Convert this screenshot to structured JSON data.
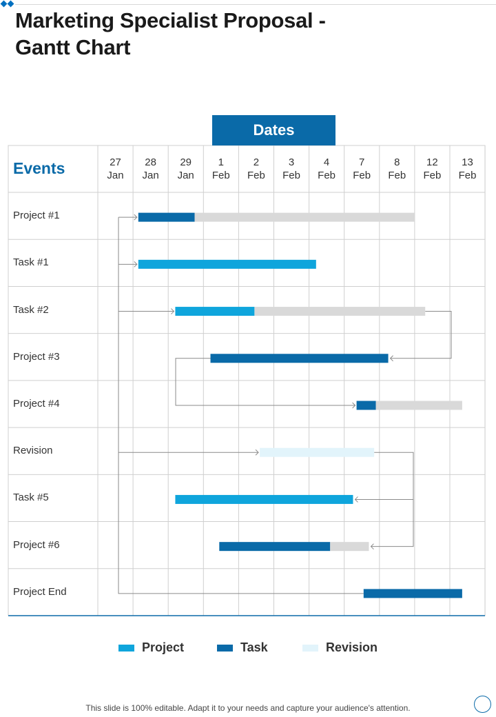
{
  "title": "Marketing Specialist Proposal  -\nGantt Chart",
  "footer_text": "This slide is 100% editable. Adapt it to your needs and capture your audience's attention.",
  "colors": {
    "project": "#0fa5dc",
    "task": "#0a6aa8",
    "revision": "#e2f4fb",
    "remaining": "#d9d9d9",
    "header_bg": "#0a6aa8",
    "grid": "#cfcfcf",
    "connector": "#8a8a8a"
  },
  "chart_data": {
    "type": "gantt",
    "header": "Dates",
    "row_header": "Events",
    "dates": [
      "27\nJan",
      "28\nJan",
      "29\nJan",
      "1\nFeb",
      "2\nFeb",
      "3\nFeb",
      "4\nFeb",
      "7\nFeb",
      "8\nFeb",
      "12\nFeb",
      "13\nFeb"
    ],
    "rows": [
      {
        "label": "Project #1",
        "bars": [
          {
            "start": 1.15,
            "end": 2.75,
            "kind": "task"
          },
          {
            "start": 2.75,
            "end": 9.0,
            "kind": "remaining"
          }
        ]
      },
      {
        "label": "Task #1",
        "bars": [
          {
            "start": 1.15,
            "end": 6.2,
            "kind": "project"
          }
        ]
      },
      {
        "label": "Task #2",
        "bars": [
          {
            "start": 2.2,
            "end": 4.45,
            "kind": "project"
          },
          {
            "start": 4.45,
            "end": 9.3,
            "kind": "remaining"
          }
        ]
      },
      {
        "label": "Project #3",
        "bars": [
          {
            "start": 3.2,
            "end": 8.25,
            "kind": "task"
          }
        ]
      },
      {
        "label": "Project #4",
        "bars": [
          {
            "start": 7.35,
            "end": 7.9,
            "kind": "task"
          },
          {
            "start": 7.9,
            "end": 10.35,
            "kind": "remaining"
          }
        ]
      },
      {
        "label": "Revision",
        "bars": [
          {
            "start": 4.6,
            "end": 7.85,
            "kind": "revision"
          }
        ]
      },
      {
        "label": "Task #5",
        "bars": [
          {
            "start": 2.2,
            "end": 7.25,
            "kind": "project"
          }
        ]
      },
      {
        "label": "Project #6",
        "bars": [
          {
            "start": 3.45,
            "end": 6.6,
            "kind": "task"
          },
          {
            "start": 6.6,
            "end": 7.7,
            "kind": "remaining"
          }
        ]
      },
      {
        "label": "Project End",
        "bars": [
          {
            "start": 7.55,
            "end": 10.35,
            "kind": "task"
          }
        ]
      }
    ],
    "legend": [
      {
        "label": "Project",
        "kind": "project"
      },
      {
        "label": "Task",
        "kind": "task"
      },
      {
        "label": "Revision",
        "kind": "revision"
      }
    ]
  }
}
